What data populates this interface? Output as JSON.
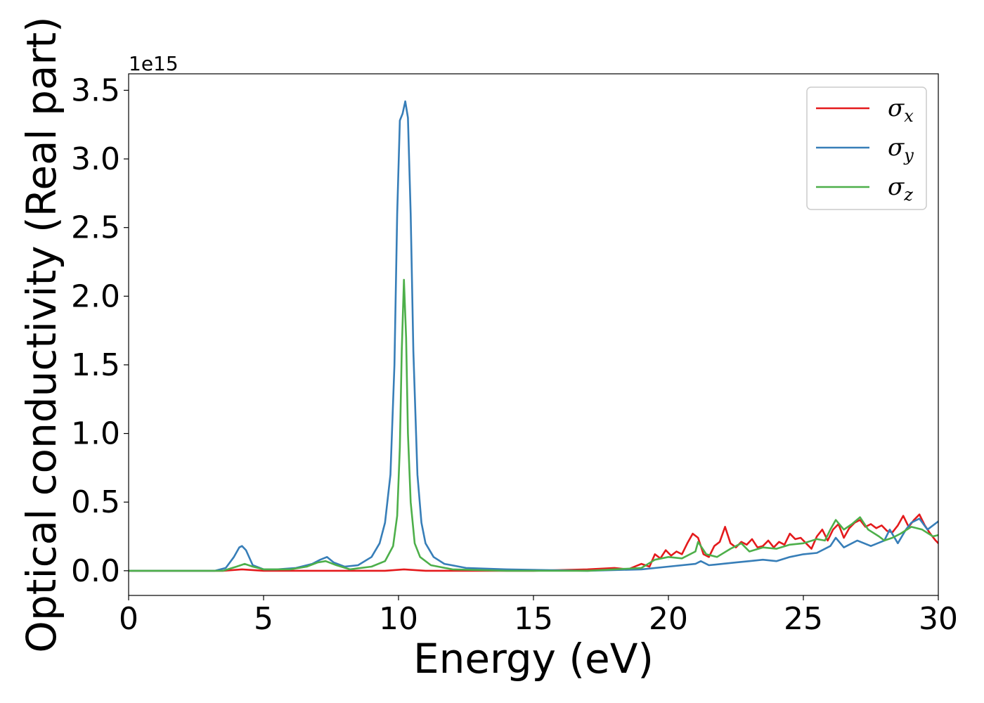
{
  "chart_data": {
    "type": "line",
    "title": "",
    "xlabel": "Energy (eV)",
    "ylabel": "Optical conductivity (Real part)",
    "y_offset_text": "1e15",
    "xlim": [
      0,
      30
    ],
    "ylim": [
      -0.18,
      3.62
    ],
    "x_ticks": [
      0,
      5,
      10,
      15,
      20,
      25,
      30
    ],
    "x_tick_labels": [
      "0",
      "5",
      "10",
      "15",
      "20",
      "25",
      "30"
    ],
    "y_ticks": [
      0.0,
      0.5,
      1.0,
      1.5,
      2.0,
      2.5,
      3.0,
      3.5
    ],
    "y_tick_labels": [
      "0.0",
      "0.5",
      "1.0",
      "1.5",
      "2.0",
      "2.5",
      "3.0",
      "3.5"
    ],
    "grid": false,
    "legend_position": "top-right",
    "series": [
      {
        "name": "σx",
        "name_base": "σ",
        "name_sub": "x",
        "color": "#e41a1c",
        "x": [
          0,
          3.5,
          4.2,
          5,
          7,
          9.5,
          10.2,
          11,
          15,
          17,
          18,
          18.5,
          19,
          19.3,
          19.5,
          19.7,
          19.9,
          20.1,
          20.3,
          20.5,
          20.7,
          20.9,
          21.1,
          21.3,
          21.5,
          21.7,
          21.9,
          22.1,
          22.3,
          22.5,
          22.7,
          22.9,
          23.1,
          23.3,
          23.5,
          23.7,
          23.9,
          24.1,
          24.3,
          24.5,
          24.7,
          24.9,
          25.1,
          25.3,
          25.5,
          25.7,
          25.9,
          26.1,
          26.3,
          26.5,
          26.7,
          26.9,
          27.1,
          27.3,
          27.5,
          27.7,
          27.9,
          28.1,
          28.3,
          28.5,
          28.7,
          28.9,
          29.1,
          29.3,
          29.5,
          29.7,
          29.9,
          30
        ],
        "y": [
          0.0,
          0.0,
          0.01,
          0.0,
          0.0,
          0.0,
          0.01,
          0.0,
          0.0,
          0.01,
          0.02,
          0.01,
          0.05,
          0.03,
          0.12,
          0.09,
          0.15,
          0.11,
          0.14,
          0.12,
          0.2,
          0.27,
          0.24,
          0.12,
          0.1,
          0.18,
          0.21,
          0.32,
          0.2,
          0.17,
          0.21,
          0.19,
          0.23,
          0.17,
          0.18,
          0.22,
          0.17,
          0.21,
          0.19,
          0.27,
          0.23,
          0.24,
          0.2,
          0.16,
          0.25,
          0.3,
          0.22,
          0.3,
          0.34,
          0.24,
          0.31,
          0.35,
          0.37,
          0.32,
          0.34,
          0.31,
          0.33,
          0.29,
          0.28,
          0.33,
          0.4,
          0.32,
          0.37,
          0.41,
          0.33,
          0.27,
          0.22,
          0.2
        ]
      },
      {
        "name": "σy",
        "name_base": "σ",
        "name_sub": "y",
        "color": "#377eb8",
        "x": [
          0,
          3.2,
          3.6,
          3.9,
          4.1,
          4.2,
          4.35,
          4.6,
          5.0,
          5.5,
          6.2,
          6.8,
          7.1,
          7.35,
          7.6,
          8.0,
          8.5,
          9.0,
          9.3,
          9.5,
          9.7,
          9.85,
          9.95,
          10.05,
          10.15,
          10.25,
          10.35,
          10.45,
          10.55,
          10.7,
          10.85,
          11.0,
          11.3,
          11.7,
          12.5,
          14,
          17,
          19,
          20,
          21,
          21.2,
          21.5,
          22,
          22.5,
          23,
          23.5,
          24,
          24.5,
          25,
          25.5,
          26,
          26.2,
          26.5,
          27,
          27.5,
          28,
          28.2,
          28.5,
          28.8,
          29.0,
          29.3,
          29.6,
          30
        ],
        "y": [
          0.0,
          0.0,
          0.02,
          0.1,
          0.17,
          0.18,
          0.15,
          0.04,
          0.01,
          0.01,
          0.02,
          0.05,
          0.08,
          0.1,
          0.06,
          0.03,
          0.04,
          0.1,
          0.2,
          0.35,
          0.7,
          1.5,
          2.6,
          3.28,
          3.33,
          3.42,
          3.3,
          2.6,
          1.6,
          0.7,
          0.35,
          0.2,
          0.1,
          0.05,
          0.02,
          0.01,
          0.0,
          0.01,
          0.03,
          0.05,
          0.07,
          0.04,
          0.05,
          0.06,
          0.07,
          0.08,
          0.07,
          0.1,
          0.12,
          0.13,
          0.18,
          0.24,
          0.17,
          0.22,
          0.18,
          0.22,
          0.3,
          0.2,
          0.3,
          0.35,
          0.38,
          0.3,
          0.36
        ]
      },
      {
        "name": "σz",
        "name_base": "σ",
        "name_sub": "z",
        "color": "#4daf4a",
        "x": [
          0,
          3.5,
          4.0,
          4.3,
          4.6,
          5.0,
          6.0,
          6.6,
          7.0,
          7.3,
          7.7,
          8.2,
          9.0,
          9.5,
          9.8,
          9.95,
          10.05,
          10.12,
          10.2,
          10.28,
          10.35,
          10.45,
          10.6,
          10.8,
          11.2,
          12,
          14,
          17,
          19,
          19.5,
          20,
          20.5,
          21,
          21.1,
          21.4,
          21.8,
          22.3,
          22.7,
          23,
          23.5,
          24,
          24.5,
          25,
          25.5,
          25.8,
          26,
          26.2,
          26.5,
          26.8,
          27.1,
          27.4,
          27.8,
          28.0,
          28.3,
          28.6,
          29,
          29.4,
          29.8,
          30
        ],
        "y": [
          0.0,
          0.0,
          0.03,
          0.05,
          0.03,
          0.01,
          0.01,
          0.03,
          0.06,
          0.07,
          0.04,
          0.01,
          0.03,
          0.07,
          0.18,
          0.4,
          0.9,
          1.6,
          2.12,
          1.7,
          1.0,
          0.5,
          0.2,
          0.1,
          0.04,
          0.01,
          0.0,
          0.0,
          0.02,
          0.08,
          0.1,
          0.09,
          0.14,
          0.21,
          0.12,
          0.1,
          0.16,
          0.2,
          0.14,
          0.17,
          0.16,
          0.19,
          0.2,
          0.23,
          0.22,
          0.3,
          0.37,
          0.3,
          0.34,
          0.39,
          0.3,
          0.25,
          0.22,
          0.24,
          0.27,
          0.32,
          0.3,
          0.25,
          0.26
        ]
      }
    ]
  }
}
